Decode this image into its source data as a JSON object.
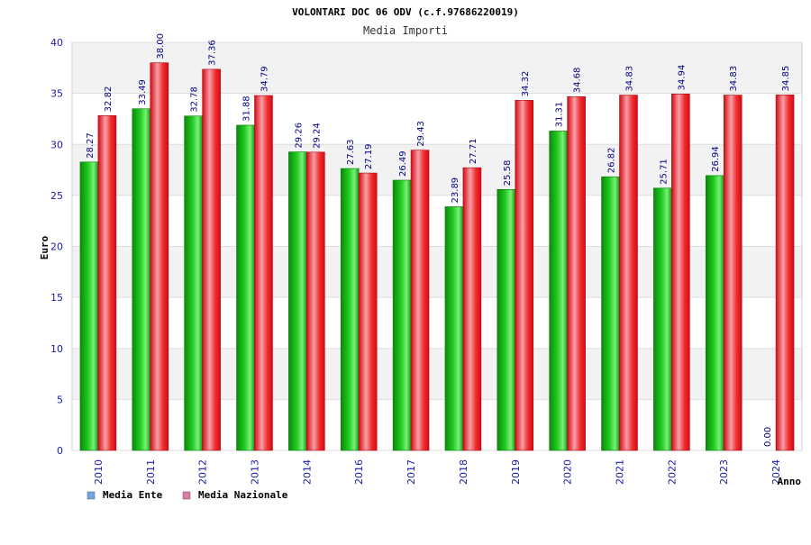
{
  "chart_data": {
    "type": "bar",
    "title": "VOLONTARI DOC 06 ODV (c.f.97686220019)",
    "subtitle": "Media Importi",
    "xlabel": "Anno",
    "ylabel": "Euro",
    "ylim": [
      0,
      40
    ],
    "yticks": [
      "0",
      "5",
      "10",
      "15",
      "20",
      "25",
      "30",
      "35",
      "40"
    ],
    "grid": true,
    "legend_position": "bottom-left",
    "categories": [
      "2010",
      "2011",
      "2012",
      "2013",
      "2014",
      "2016",
      "2017",
      "2018",
      "2019",
      "2020",
      "2021",
      "2022",
      "2023",
      "2024"
    ],
    "series": [
      {
        "name": "Media Ente",
        "color": "#1ab01a",
        "legend_color": "#6fa8e8",
        "values": [
          28.27,
          33.49,
          32.78,
          31.88,
          29.26,
          27.63,
          26.49,
          23.89,
          25.58,
          31.31,
          26.82,
          25.71,
          26.94,
          0.0
        ],
        "labels": [
          "28.27",
          "33.49",
          "32.78",
          "31.88",
          "29.26",
          "27.63",
          "26.49",
          "23.89",
          "25.58",
          "31.31",
          "26.82",
          "25.71",
          "26.94",
          "0.00"
        ]
      },
      {
        "name": "Media Nazionale",
        "color": "#e8101a",
        "legend_color": "#e07aa8",
        "values": [
          32.82,
          38.0,
          37.36,
          34.79,
          29.24,
          27.19,
          29.43,
          27.71,
          34.32,
          34.68,
          34.83,
          34.94,
          34.83,
          34.85
        ],
        "labels": [
          "32.82",
          "38.00",
          "37.36",
          "34.79",
          "29.24",
          "27.19",
          "29.43",
          "27.71",
          "34.32",
          "34.68",
          "34.83",
          "34.94",
          "34.83",
          "34.85"
        ]
      }
    ]
  }
}
